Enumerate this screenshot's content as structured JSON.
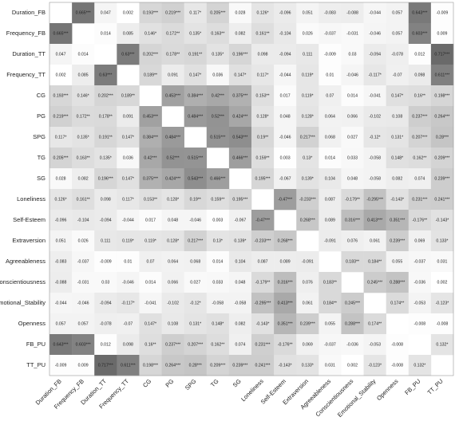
{
  "chart_data": {
    "type": "heatmap",
    "labels": [
      "Duration_FB",
      "Frequency_FB",
      "Duration_TT",
      "Frequency_TT",
      "CG",
      "PG",
      "SPG",
      "TG",
      "SG",
      "Loneliness",
      "Self-Esteem",
      "Extraversion",
      "Agreeableness",
      "Conscientiousness",
      "Emotional_Stability",
      "Openness",
      "FB_PU",
      "TT_PU"
    ],
    "colorscale": [
      "#ffffff",
      "#6a6a6a"
    ],
    "values": [
      [
        null,
        0.665,
        0.047,
        0.002,
        0.193,
        0.219,
        0.117,
        0.205,
        0.028,
        0.126,
        -0.096,
        0.051,
        -0.083,
        -0.088,
        -0.044,
        0.057,
        0.643,
        -0.009
      ],
      [
        0.665,
        null,
        0.014,
        0.085,
        0.146,
        0.172,
        0.135,
        0.163,
        0.082,
        0.161,
        -0.104,
        0.026,
        -0.037,
        -0.031,
        -0.046,
        0.057,
        0.603,
        0.009
      ],
      [
        0.047,
        0.014,
        null,
        0.63,
        0.202,
        0.178,
        0.191,
        0.135,
        0.196,
        0.098,
        -0.094,
        0.111,
        -0.009,
        0.03,
        -0.094,
        -0.078,
        0.012,
        0.717
      ],
      [
        0.002,
        0.085,
        0.63,
        null,
        0.189,
        0.091,
        0.147,
        0.036,
        0.147,
        0.117,
        -0.044,
        0.119,
        0.01,
        -0.046,
        -0.117,
        -0.07,
        0.098,
        0.611
      ],
      [
        0.193,
        0.146,
        0.202,
        0.189,
        null,
        0.453,
        0.384,
        0.42,
        0.375,
        0.153,
        0.017,
        0.119,
        0.07,
        0.014,
        -0.041,
        0.147,
        0.16,
        0.198
      ],
      [
        0.219,
        0.172,
        0.178,
        0.091,
        0.453,
        null,
        0.484,
        0.52,
        0.424,
        0.128,
        0.048,
        0.128,
        0.064,
        0.066,
        -0.102,
        0.108,
        0.237,
        0.264
      ],
      [
        0.117,
        0.135,
        0.191,
        0.147,
        0.384,
        0.484,
        null,
        0.515,
        0.543,
        0.19,
        -0.046,
        0.217,
        0.068,
        0.027,
        -0.12,
        0.131,
        0.207,
        0.28
      ],
      [
        0.205,
        0.163,
        0.135,
        0.036,
        0.42,
        0.52,
        0.515,
        null,
        0.466,
        0.159,
        0.003,
        0.13,
        0.014,
        0.033,
        -0.058,
        0.148,
        0.162,
        0.209
      ],
      [
        0.028,
        0.082,
        0.196,
        0.147,
        0.375,
        0.424,
        0.543,
        0.466,
        null,
        0.195,
        -0.067,
        0.139,
        0.104,
        0.048,
        -0.058,
        0.082,
        0.074,
        0.239
      ],
      [
        0.126,
        0.161,
        0.098,
        0.117,
        0.153,
        0.128,
        0.19,
        0.159,
        0.195,
        null,
        -0.47,
        -0.233,
        0.087,
        -0.179,
        -0.295,
        -0.143,
        0.231,
        0.241
      ],
      [
        -0.096,
        -0.104,
        -0.094,
        -0.044,
        0.017,
        0.048,
        -0.046,
        0.003,
        -0.067,
        -0.47,
        null,
        0.268,
        0.089,
        0.316,
        0.413,
        0.351,
        -0.176,
        -0.143
      ],
      [
        0.051,
        0.026,
        0.111,
        0.119,
        0.119,
        0.128,
        0.217,
        0.13,
        0.139,
        -0.233,
        0.268,
        null,
        -0.091,
        0.076,
        0.061,
        0.239,
        0.069,
        0.133
      ],
      [
        -0.083,
        -0.037,
        -0.009,
        0.01,
        0.07,
        0.064,
        0.068,
        0.014,
        0.104,
        0.087,
        0.089,
        -0.091,
        null,
        0.183,
        0.184,
        0.055,
        -0.037,
        0.031
      ],
      [
        -0.088,
        -0.031,
        0.03,
        -0.046,
        0.014,
        0.066,
        0.027,
        0.033,
        0.048,
        -0.179,
        0.316,
        0.076,
        0.183,
        null,
        0.245,
        0.288,
        -0.036,
        0.002
      ],
      [
        -0.044,
        -0.046,
        -0.094,
        -0.117,
        -0.041,
        -0.102,
        -0.12,
        -0.058,
        -0.058,
        -0.295,
        0.413,
        0.061,
        0.184,
        0.245,
        null,
        0.174,
        -0.053,
        -0.123
      ],
      [
        0.057,
        0.057,
        -0.078,
        -0.07,
        0.147,
        0.108,
        0.131,
        0.148,
        0.082,
        -0.143,
        0.351,
        0.239,
        0.055,
        0.288,
        0.174,
        null,
        -0.008,
        -0.008
      ],
      [
        0.643,
        0.603,
        0.012,
        0.098,
        0.16,
        0.237,
        0.207,
        0.162,
        0.074,
        0.231,
        -0.176,
        0.069,
        -0.037,
        -0.036,
        -0.053,
        -0.008,
        null,
        0.132
      ],
      [
        -0.009,
        0.009,
        0.717,
        0.611,
        0.198,
        0.264,
        0.28,
        0.209,
        0.239,
        0.241,
        -0.143,
        0.133,
        0.031,
        0.002,
        -0.123,
        -0.008,
        0.132,
        null
      ]
    ],
    "value_labels": [
      [
        null,
        "0.665***",
        "0.047",
        "0.002",
        "0.193***",
        "0.219***",
        "0.117*",
        "0.205***",
        "0.028",
        "0.126*",
        "-0.096",
        "0.051",
        "-0.083",
        "-0.088",
        "-0.044",
        "0.057",
        "0.643***",
        "-0.009"
      ],
      [
        "0.665***",
        null,
        "0.014",
        "0.085",
        "0.146*",
        "0.172**",
        "0.135*",
        "0.163**",
        "0.082",
        "0.161**",
        "-0.104",
        "0.026",
        "-0.037",
        "-0.031",
        "-0.046",
        "0.057",
        "0.603***",
        "0.009"
      ],
      [
        "0.047",
        "0.014",
        null,
        "0.63***",
        "0.202***",
        "0.178**",
        "0.191**",
        "0.135*",
        "0.196***",
        "0.098",
        "-0.094",
        "0.111",
        "-0.009",
        "0.03",
        "-0.094",
        "-0.078",
        "0.012",
        "0.717***"
      ],
      [
        "0.002",
        "0.085",
        "0.63***",
        null,
        "0.189**",
        "0.091",
        "0.147*",
        "0.036",
        "0.147*",
        "0.117*",
        "-0.044",
        "0.119*",
        "0.01",
        "-0.046",
        "-0.117*",
        "-0.07",
        "0.098",
        "0.611***"
      ],
      [
        "0.193***",
        "0.146*",
        "0.202***",
        "0.189**",
        null,
        "0.453***",
        "0.384***",
        "0.42***",
        "0.375***",
        "0.153**",
        "0.017",
        "0.119*",
        "0.07",
        "0.014",
        "-0.041",
        "0.147*",
        "0.16**",
        "0.198***"
      ],
      [
        "0.219***",
        "0.172**",
        "0.178**",
        "0.091",
        "0.453***",
        null,
        "0.484***",
        "0.52***",
        "0.424***",
        "0.128*",
        "0.048",
        "0.128*",
        "0.064",
        "0.066",
        "-0.102",
        "0.108",
        "0.237***",
        "0.264***"
      ],
      [
        "0.117*",
        "0.135*",
        "0.191**",
        "0.147*",
        "0.384***",
        "0.484***",
        null,
        "0.515***",
        "0.543***",
        "0.19**",
        "-0.046",
        "0.217***",
        "0.068",
        "0.027",
        "-0.12*",
        "0.131*",
        "0.207***",
        "0.28***"
      ],
      [
        "0.205***",
        "0.163**",
        "0.135*",
        "0.036",
        "0.42***",
        "0.52***",
        "0.515***",
        null,
        "0.466***",
        "0.159**",
        "0.003",
        "0.13*",
        "0.014",
        "0.033",
        "-0.058",
        "0.148*",
        "0.162**",
        "0.209***"
      ],
      [
        "0.028",
        "0.082",
        "0.196***",
        "0.147*",
        "0.375***",
        "0.424***",
        "0.543***",
        "0.466***",
        null,
        "0.195***",
        "-0.067",
        "0.139*",
        "0.104",
        "0.048",
        "-0.058",
        "0.082",
        "0.074",
        "0.239***"
      ],
      [
        "0.126*",
        "0.161**",
        "0.098",
        "0.117*",
        "0.153**",
        "0.128*",
        "0.19**",
        "0.159**",
        "0.195***",
        null,
        "-0.47***",
        "-0.233***",
        "0.087",
        "-0.179**",
        "-0.295***",
        "-0.143*",
        "0.231***",
        "0.241***"
      ],
      [
        "-0.096",
        "-0.104",
        "-0.094",
        "-0.044",
        "0.017",
        "0.048",
        "-0.046",
        "0.003",
        "-0.067",
        "-0.47***",
        null,
        "0.268***",
        "0.089",
        "0.316***",
        "0.413***",
        "0.351***",
        "-0.176**",
        "-0.143*"
      ],
      [
        "0.051",
        "0.026",
        "0.111",
        "0.119*",
        "0.119*",
        "0.128*",
        "0.217***",
        "0.13*",
        "0.139*",
        "-0.233***",
        "0.268***",
        null,
        "-0.091",
        "0.076",
        "0.061",
        "0.239***",
        "0.069",
        "0.133*"
      ],
      [
        "-0.083",
        "-0.037",
        "-0.009",
        "0.01",
        "0.07",
        "0.064",
        "0.068",
        "0.014",
        "0.104",
        "0.087",
        "0.089",
        "-0.091",
        null,
        "0.183**",
        "0.184**",
        "0.055",
        "-0.037",
        "0.031"
      ],
      [
        "-0.088",
        "-0.031",
        "0.03",
        "-0.046",
        "0.014",
        "0.066",
        "0.027",
        "0.033",
        "0.048",
        "-0.179**",
        "0.316***",
        "0.076",
        "0.183**",
        null,
        "0.245***",
        "0.288***",
        "-0.036",
        "0.002"
      ],
      [
        "-0.044",
        "-0.046",
        "-0.094",
        "-0.117*",
        "-0.041",
        "-0.102",
        "-0.12*",
        "-0.058",
        "-0.058",
        "-0.295***",
        "0.413***",
        "0.061",
        "0.184**",
        "0.245***",
        null,
        "0.174**",
        "-0.053",
        "-0.123*"
      ],
      [
        "0.057",
        "0.057",
        "-0.078",
        "-0.07",
        "0.147*",
        "0.108",
        "0.131*",
        "0.148*",
        "0.082",
        "-0.143*",
        "0.351***",
        "0.239***",
        "0.055",
        "0.288***",
        "0.174**",
        null,
        "-0.008",
        "-0.008"
      ],
      [
        "0.643***",
        "0.603***",
        "0.012",
        "0.098",
        "0.16**",
        "0.237***",
        "0.207***",
        "0.162**",
        "0.074",
        "0.231***",
        "-0.176**",
        "0.069",
        "-0.037",
        "-0.036",
        "-0.053",
        "-0.008",
        null,
        "0.132*"
      ],
      [
        "-0.009",
        "0.009",
        "0.717***",
        "0.611***",
        "0.198***",
        "0.264***",
        "0.28***",
        "0.209***",
        "0.239***",
        "0.241***",
        "-0.143*",
        "0.133*",
        "0.031",
        "0.002",
        "-0.123*",
        "-0.008",
        "0.132*",
        null
      ]
    ]
  }
}
